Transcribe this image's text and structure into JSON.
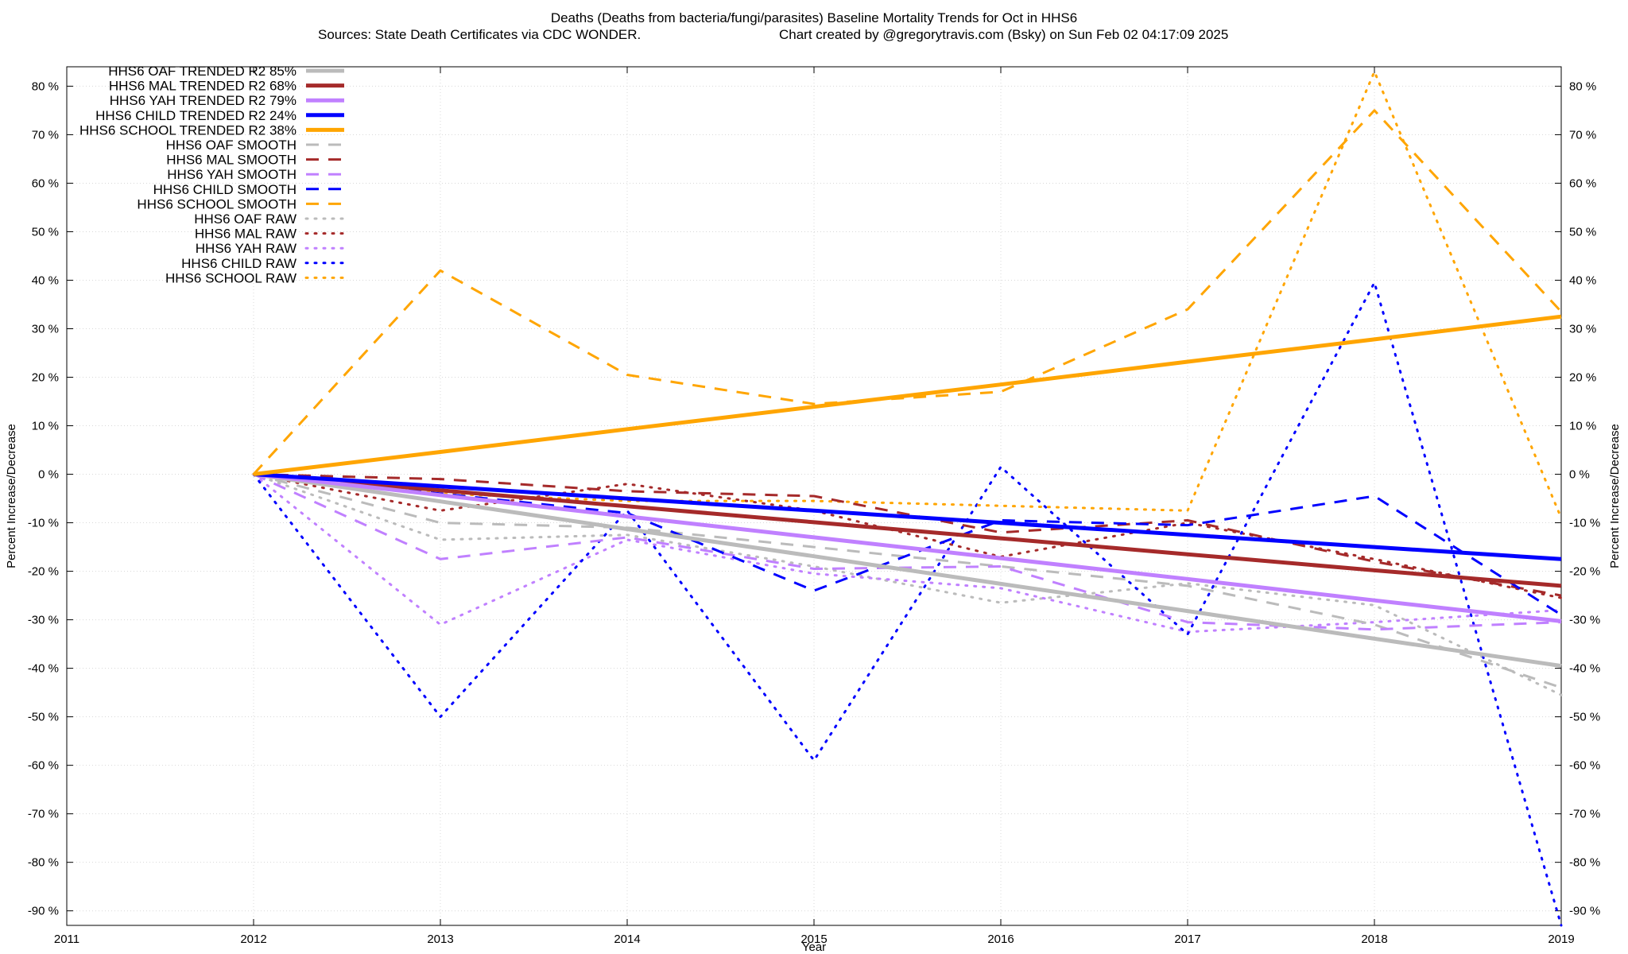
{
  "chart_data": {
    "type": "line",
    "title": "Deaths (Deaths from bacteria/fungi/parasites)  Baseline Mortality Trends for Oct in HHS6",
    "subtitle_left": "Sources: State Death Certificates via CDC WONDER.",
    "subtitle_right": "Chart created by @gregorytravis.com (Bsky) on Sun Feb 02 04:17:09 2025",
    "xlabel": "Year",
    "ylabel_left": "Percent Increase/Decrease",
    "ylabel_right": "Percent Increase/Decrease",
    "xlim": [
      2011,
      2019
    ],
    "ylim": [
      -93,
      84
    ],
    "x_ticks": [
      "2011",
      "2012",
      "2013",
      "2014",
      "2015",
      "2016",
      "2017",
      "2018",
      "2019"
    ],
    "y_ticks": [
      {
        "value": 80,
        "label": "80 %"
      },
      {
        "value": 70,
        "label": "70 %"
      },
      {
        "value": 60,
        "label": "60 %"
      },
      {
        "value": 50,
        "label": "50 %"
      },
      {
        "value": 40,
        "label": "40 %"
      },
      {
        "value": 30,
        "label": "30 %"
      },
      {
        "value": 20,
        "label": "20 %"
      },
      {
        "value": 10,
        "label": "10 %"
      },
      {
        "value": 0,
        "label": "0 %"
      },
      {
        "value": -10,
        "label": "-10 %"
      },
      {
        "value": -20,
        "label": "-20 %"
      },
      {
        "value": -30,
        "label": "-30 %"
      },
      {
        "value": -40,
        "label": "-40 %"
      },
      {
        "value": -50,
        "label": "-50 %"
      },
      {
        "value": -60,
        "label": "-60 %"
      },
      {
        "value": -70,
        "label": "-70 %"
      },
      {
        "value": -80,
        "label": "-80 %"
      },
      {
        "value": -90,
        "label": "-90 %"
      }
    ],
    "grid": true,
    "legend_position": "top-left",
    "x": [
      2012,
      2013,
      2014,
      2015,
      2016,
      2017,
      2018,
      2019
    ],
    "series": [
      {
        "name": "HHS6 OAF TRENDED R2  85%",
        "style": "solid",
        "color": "#bbbbbb",
        "values": [
          0,
          -5.6,
          -11.3,
          -16.9,
          -22.6,
          -28.2,
          -33.9,
          -39.5
        ]
      },
      {
        "name": "HHS6 MAL TRENDED R2  68%",
        "style": "solid",
        "color": "#a52a2a",
        "values": [
          0,
          -3.3,
          -6.6,
          -9.9,
          -13.2,
          -16.5,
          -19.8,
          -23
        ]
      },
      {
        "name": "HHS6 YAH TRENDED R2  79%",
        "style": "solid",
        "color": "#c080ff",
        "values": [
          0,
          -4.3,
          -8.7,
          -13,
          -17.3,
          -21.6,
          -26,
          -30.3
        ]
      },
      {
        "name": "HHS6 CHILD TRENDED R2  24%",
        "style": "solid",
        "color": "#0000ff",
        "values": [
          0,
          -2.5,
          -5,
          -7.5,
          -10,
          -12.5,
          -15,
          -17.5
        ]
      },
      {
        "name": "HHS6 SCHOOL TRENDED R2  38%",
        "style": "solid",
        "color": "#ffa500",
        "values": [
          0,
          4.6,
          9.3,
          13.9,
          18.5,
          23.2,
          27.8,
          32.5
        ]
      },
      {
        "name": "HHS6 OAF SMOOTH",
        "style": "dashed",
        "color": "#bbbbbb",
        "values": [
          0,
          -10,
          -11,
          -15,
          -19,
          -23,
          -31,
          -44
        ]
      },
      {
        "name": "HHS6 MAL SMOOTH",
        "style": "dashed",
        "color": "#a52a2a",
        "values": [
          0,
          -1,
          -3.5,
          -4.5,
          -12,
          -9.5,
          -18,
          -25
        ]
      },
      {
        "name": "HHS6 YAH SMOOTH",
        "style": "dashed",
        "color": "#c080ff",
        "values": [
          0,
          -17.5,
          -13,
          -19.5,
          -19,
          -30.5,
          -32,
          -30.5
        ]
      },
      {
        "name": "HHS6 CHILD SMOOTH",
        "style": "dashed",
        "color": "#0000ff",
        "values": [
          0,
          -4,
          -8,
          -24,
          -9.5,
          -10.5,
          -4.5,
          -29
        ]
      },
      {
        "name": "HHS6 SCHOOL SMOOTH",
        "style": "dashed",
        "color": "#ffa500",
        "values": [
          0,
          42,
          20.5,
          14.5,
          17,
          34,
          75,
          33.5
        ]
      },
      {
        "name": "HHS6 OAF RAW",
        "style": "dotted",
        "color": "#bbbbbb",
        "values": [
          0,
          -13.5,
          -12.5,
          -19,
          -26.5,
          -22.5,
          -27,
          -45.5
        ]
      },
      {
        "name": "HHS6 MAL RAW",
        "style": "dotted",
        "color": "#a52a2a",
        "values": [
          0,
          -7.5,
          -2,
          -7.5,
          -17,
          -10,
          -17.5,
          -25.5
        ]
      },
      {
        "name": "HHS6 YAH RAW",
        "style": "dotted",
        "color": "#c080ff",
        "values": [
          0,
          -31,
          -13.5,
          -20.5,
          -23.5,
          -32.5,
          -30.5,
          -28
        ]
      },
      {
        "name": "HHS6 CHILD RAW",
        "style": "dotted",
        "color": "#0000ff",
        "values": [
          0,
          -50,
          -7.5,
          -59,
          1.5,
          -33,
          39.5,
          -93
        ]
      },
      {
        "name": "HHS6 SCHOOL RAW",
        "style": "dotted",
        "color": "#ffa500",
        "values": [
          0,
          -4,
          -5.5,
          -5.5,
          -6.5,
          -7.5,
          83,
          -9
        ]
      }
    ]
  }
}
